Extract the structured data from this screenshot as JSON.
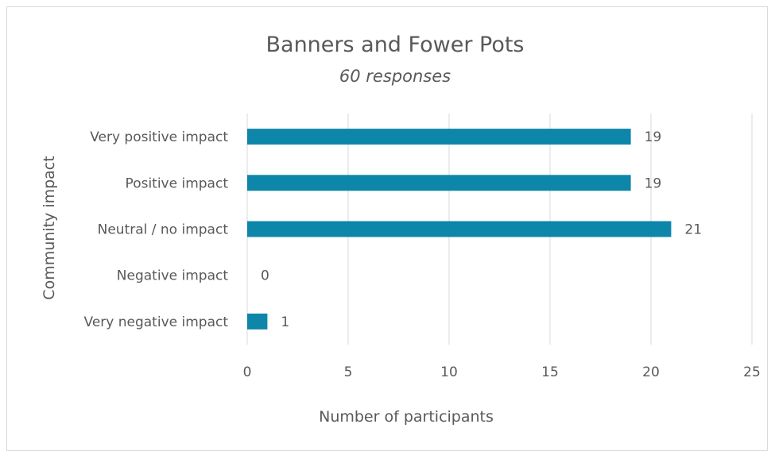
{
  "chart_data": {
    "type": "bar",
    "orientation": "horizontal",
    "title": "Banners and Fower Pots",
    "subtitle": "60 responses",
    "xlabel": "Number of participants",
    "ylabel": "Community impact",
    "categories": [
      "Very positive impact",
      "Positive impact",
      "Neutral / no impact",
      "Negative impact",
      "Very negative impact"
    ],
    "values": [
      19,
      19,
      21,
      0,
      1
    ],
    "xlim": [
      0,
      25
    ],
    "xticks": [
      0,
      5,
      10,
      15,
      20,
      25
    ],
    "grid": true,
    "data_labels": true,
    "bar_color": "#0E86A9",
    "grid_color": "#d9d9d9"
  }
}
